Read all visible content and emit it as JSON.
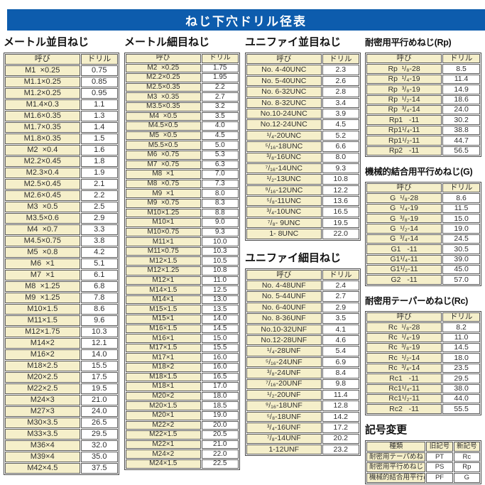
{
  "page_title": "ねじ下穴ドリル径表",
  "colors": {
    "banner_blue": "#0d5cad",
    "cell_cream": "#f5efca",
    "border_gray": "#4a4a4a"
  },
  "tables": {
    "metric_coarse": {
      "title": "メートル並目ねじ",
      "headers": [
        "呼び",
        "ドリル"
      ],
      "rows": [
        [
          "M1  ×0.25",
          "0.75"
        ],
        [
          "M1.1×0.25",
          "0.85"
        ],
        [
          "M1.2×0.25",
          "0.95"
        ],
        [
          "M1.4×0.3",
          "1.1"
        ],
        [
          "M1.6×0.35",
          "1.3"
        ],
        [
          "M1.7×0.35",
          "1.4"
        ],
        [
          "M1.8×0.35",
          "1.5"
        ],
        [
          "M2  ×0.4",
          "1.6"
        ],
        [
          "M2.2×0.45",
          "1.8"
        ],
        [
          "M2.3×0.4",
          "1.9"
        ],
        [
          "M2.5×0.45",
          "2.1"
        ],
        [
          "M2.6×0.45",
          "2.2"
        ],
        [
          "M3  ×0.5",
          "2.5"
        ],
        [
          "M3.5×0.6",
          "2.9"
        ],
        [
          "M4  ×0.7",
          "3.3"
        ],
        [
          "M4.5×0.75",
          "3.8"
        ],
        [
          "M5  ×0.8",
          "4.2"
        ],
        [
          "M6  ×1",
          "5.1"
        ],
        [
          "M7  ×1",
          "6.1"
        ],
        [
          "M8  ×1.25",
          "6.8"
        ],
        [
          "M9  ×1.25",
          "7.8"
        ],
        [
          "M10×1.5",
          "8.6"
        ],
        [
          "M11×1.5",
          "9.6"
        ],
        [
          "M12×1.75",
          "10.3"
        ],
        [
          "M14×2",
          "12.1"
        ],
        [
          "M16×2",
          "14.0"
        ],
        [
          "M18×2.5",
          "15.5"
        ],
        [
          "M20×2.5",
          "17.5"
        ],
        [
          "M22×2.5",
          "19.5"
        ],
        [
          "M24×3",
          "21.0"
        ],
        [
          "M27×3",
          "24.0"
        ],
        [
          "M30×3.5",
          "26.5"
        ],
        [
          "M33×3.5",
          "29.5"
        ],
        [
          "M36×4",
          "32.0"
        ],
        [
          "M39×4",
          "35.0"
        ],
        [
          "M42×4.5",
          "37.5"
        ]
      ]
    },
    "metric_fine": {
      "title": "メートル細目ねじ",
      "headers": [
        "呼び",
        "ドリル"
      ],
      "rows": [
        [
          "M2  ×0.25",
          "1.75"
        ],
        [
          "M2.2×0.25",
          "1.95"
        ],
        [
          "M2.5×0.35",
          "2.2"
        ],
        [
          "M3  ×0.35",
          "2.7"
        ],
        [
          "M3.5×0.35",
          "3.2"
        ],
        [
          "M4  ×0.5",
          "3.5"
        ],
        [
          "M4.5×0.5",
          "4.0"
        ],
        [
          "M5  ×0.5",
          "4.5"
        ],
        [
          "M5.5×0.5",
          "5.0"
        ],
        [
          "M6  ×0.75",
          "5.3"
        ],
        [
          "M7  ×0.75",
          "6.3"
        ],
        [
          "M8  ×1",
          "7.0"
        ],
        [
          "M8  ×0.75",
          "7.3"
        ],
        [
          "M9  ×1",
          "8.0"
        ],
        [
          "M9  ×0.75",
          "8.3"
        ],
        [
          "M10×1.25",
          "8.8"
        ],
        [
          "M10×1",
          "9.0"
        ],
        [
          "M10×0.75",
          "9.3"
        ],
        [
          "M11×1",
          "10.0"
        ],
        [
          "M11×0.75",
          "10.3"
        ],
        [
          "M12×1.5",
          "10.5"
        ],
        [
          "M12×1.25",
          "10.8"
        ],
        [
          "M12×1",
          "11.0"
        ],
        [
          "M14×1.5",
          "12.5"
        ],
        [
          "M14×1",
          "13.0"
        ],
        [
          "M15×1.5",
          "13.5"
        ],
        [
          "M15×1",
          "14.0"
        ],
        [
          "M16×1.5",
          "14.5"
        ],
        [
          "M16×1",
          "15.0"
        ],
        [
          "M17×1.5",
          "15.5"
        ],
        [
          "M17×1",
          "16.0"
        ],
        [
          "M18×2",
          "16.0"
        ],
        [
          "M18×1.5",
          "16.5"
        ],
        [
          "M18×1",
          "17.0"
        ],
        [
          "M20×2",
          "18.0"
        ],
        [
          "M20×1.5",
          "18.5"
        ],
        [
          "M20×1",
          "19.0"
        ],
        [
          "M22×2",
          "20.0"
        ],
        [
          "M22×1.5",
          "20.5"
        ],
        [
          "M22×1",
          "21.0"
        ],
        [
          "M24×2",
          "22.0"
        ],
        [
          "M24×1.5",
          "22.5"
        ]
      ]
    },
    "unified_coarse": {
      "title": "ユニファイ並目ねじ",
      "headers": [
        "呼び",
        "ドリル"
      ],
      "rows": [
        [
          "No. 4-40UNC",
          "2.3"
        ],
        [
          "No. 5-40UNC",
          "2.6"
        ],
        [
          "No. 6-32UNC",
          "2.8"
        ],
        [
          "No. 8-32UNC",
          "3.4"
        ],
        [
          "No.10-24UNC",
          "3.9"
        ],
        [
          "No.12-24UNC",
          "4.5"
        ],
        [
          "¹/₄-20UNC",
          "5.2"
        ],
        [
          "⁵/₁₆-18UNC",
          "6.6"
        ],
        [
          "³/₈-16UNC",
          "8.0"
        ],
        [
          "⁷/₁₆-14UNC",
          "9.3"
        ],
        [
          "¹/₂-13UNC",
          "10.8"
        ],
        [
          "⁹/₁₆-12UNC",
          "12.2"
        ],
        [
          "⁵/₈-11UNC",
          "13.6"
        ],
        [
          "³/₄-10UNC",
          "16.5"
        ],
        [
          "⁷/₈- 9UNC",
          "19.5"
        ],
        [
          "1- 8UNC",
          "22.0"
        ]
      ]
    },
    "unified_fine": {
      "title": "ユニファイ細目ねじ",
      "headers": [
        "呼び",
        "ドリル"
      ],
      "rows": [
        [
          "No. 4-48UNF",
          "2.4"
        ],
        [
          "No. 5-44UNF",
          "2.7"
        ],
        [
          "No. 6-40UNF",
          "2.9"
        ],
        [
          "No. 8-36UNF",
          "3.5"
        ],
        [
          "No.10-32UNF",
          "4.1"
        ],
        [
          "No.12-28UNF",
          "4.6"
        ],
        [
          "¹/₄-28UNF",
          "5.4"
        ],
        [
          "⁵/₁₆-24UNF",
          "6.9"
        ],
        [
          "³/₈-24UNF",
          "8.4"
        ],
        [
          "⁷/₁₆-20UNF",
          "9.8"
        ],
        [
          "¹/₂-20UNF",
          "11.4"
        ],
        [
          "⁹/₁₆-18UNF",
          "12.8"
        ],
        [
          "⁵/₈-18UNF",
          "14.2"
        ],
        [
          "³/₄-16UNF",
          "17.2"
        ],
        [
          "⁷/₈-14UNF",
          "20.2"
        ],
        [
          "1-12UNF",
          "23.2"
        ]
      ]
    },
    "rp": {
      "title": "耐密用平行めねじ(Rp)",
      "headers": [
        "呼び",
        "ドリル"
      ],
      "rows": [
        [
          "Rp  ¹/₈-28",
          "8.5"
        ],
        [
          "Rp  ¹/₄-19",
          "11.4"
        ],
        [
          "Rp  ³/₈-19",
          "14.9"
        ],
        [
          "Rp  ¹/₂-14",
          "18.6"
        ],
        [
          "Rp  ³/₄-14",
          "24.0"
        ],
        [
          "Rp1   -11",
          "30.2"
        ],
        [
          "Rp1¹/₄-11",
          "38.8"
        ],
        [
          "Rp1¹/₂-11",
          "44.7"
        ],
        [
          "Rp2   -11",
          "56.5"
        ]
      ]
    },
    "g": {
      "title": "機械的結合用平行めねじ(G)",
      "headers": [
        "呼び",
        "ドリル"
      ],
      "rows": [
        [
          "G  ¹/₈-28",
          "8.6"
        ],
        [
          "G  ¹/₄-19",
          "11.5"
        ],
        [
          "G  ³/₈-19",
          "15.0"
        ],
        [
          "G  ¹/₂-14",
          "19.0"
        ],
        [
          "G  ³/₄-14",
          "24.5"
        ],
        [
          "G1   -11",
          "30.5"
        ],
        [
          "G1¹/₄-11",
          "39.0"
        ],
        [
          "G1¹/₂-11",
          "45.0"
        ],
        [
          "G2   -11",
          "57.0"
        ]
      ]
    },
    "rc": {
      "title": "耐密用テーパーめねじ(Rc)",
      "headers": [
        "呼び",
        "ドリル"
      ],
      "rows": [
        [
          "Rc  ¹/₈-28",
          "8.2"
        ],
        [
          "Rc  ¹/₄-19",
          "11.0"
        ],
        [
          "Rc  ³/₈-19",
          "14.5"
        ],
        [
          "Rc  ¹/₂-14",
          "18.0"
        ],
        [
          "Rc  ³/₄-14",
          "23.5"
        ],
        [
          "Rc1   -11",
          "29.5"
        ],
        [
          "Rc1¹/₄-11",
          "38.0"
        ],
        [
          "Rc1¹/₂-11",
          "44.0"
        ],
        [
          "Rc2   -11",
          "55.5"
        ]
      ]
    },
    "symbol_change": {
      "title": "記号変更",
      "headers": [
        "種類",
        "旧記号",
        "新記号"
      ],
      "rows": [
        [
          "耐密用テーパめねじ",
          "PT",
          "Rc"
        ],
        [
          "耐密用平行めねじ",
          "PS",
          "Rp"
        ],
        [
          "機械的結合用平行めねじ",
          "PF",
          "G"
        ]
      ]
    }
  }
}
